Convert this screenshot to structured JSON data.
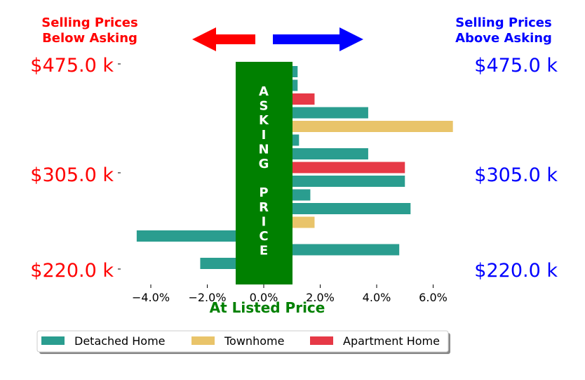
{
  "colors": {
    "below": "#ff0000",
    "above": "#0000ff",
    "asking_box": "#008000",
    "detached": "#2a9d8f",
    "townhome": "#e9c46a",
    "apartment": "#e63946"
  },
  "chart_data": {
    "type": "bar",
    "orientation": "horizontal",
    "header_left": [
      "Selling Prices",
      "Below Asking"
    ],
    "header_right": [
      "Selling Prices",
      "Above Asking"
    ],
    "asking_letters": [
      "A",
      "S",
      "K",
      "I",
      "N",
      "G",
      "",
      "P",
      "R",
      "I",
      "C",
      "E"
    ],
    "xlabel": "At Listed Price",
    "xlim": [
      -5.0,
      7.0
    ],
    "xticks": [
      -4,
      -2,
      0,
      2,
      4,
      6
    ],
    "xtick_labels": [
      "−4.0%",
      "−2.0%",
      "0.0%",
      "2.0%",
      "4.0%",
      "6.0%"
    ],
    "y_labels_left": [
      "$475.0 k",
      "$305.0 k",
      "$220.0 k"
    ],
    "y_labels_right": [
      "$475.0 k",
      "$305.0 k",
      "$220.0 k"
    ],
    "legend": [
      {
        "key": "detached",
        "label": "Detached Home"
      },
      {
        "key": "townhome",
        "label": "Townhome"
      },
      {
        "key": "apartment",
        "label": "Apartment Home"
      }
    ],
    "legend_position": "bottom",
    "bars": [
      {
        "type": "detached",
        "value": 1.2
      },
      {
        "type": "detached",
        "value": 1.2
      },
      {
        "type": "apartment",
        "value": 1.8
      },
      {
        "type": "detached",
        "value": 3.7
      },
      {
        "type": "townhome",
        "value": 6.7
      },
      {
        "type": "detached",
        "value": 1.25
      },
      {
        "type": "detached",
        "value": 3.7
      },
      {
        "type": "apartment",
        "value": 5.0
      },
      {
        "type": "detached",
        "value": 5.0
      },
      {
        "type": "detached",
        "value": 1.65
      },
      {
        "type": "detached",
        "value": 5.2
      },
      {
        "type": "townhome",
        "value": 1.8
      },
      {
        "type": "detached",
        "value": -4.5
      },
      {
        "type": "detached",
        "value": 4.8
      },
      {
        "type": "detached",
        "value": -2.25
      }
    ]
  }
}
